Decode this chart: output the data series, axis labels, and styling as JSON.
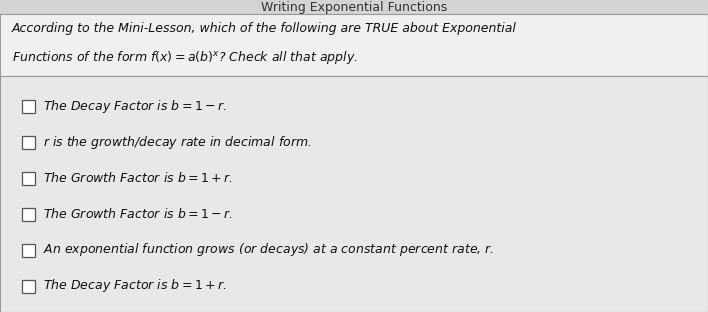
{
  "title": "Writing Exponential Functions",
  "title_color": "#333333",
  "title_fontsize": 9,
  "header_text_line1": "According to the Mini-Lesson, which of the following are TRUE about Exponential",
  "header_text_line2": "Functions of the form $f(x) = a(b)^x$? Check all that apply.",
  "header_bg": "#f0f0f0",
  "outer_bg": "#c0c0c0",
  "body_bg": "#e8e8e8",
  "title_bg": "#d4d4d4",
  "checkbox_color": "#555555",
  "items": [
    "The Decay Factor is $b = 1 - r$.",
    "$r$ is the growth/decay rate in decimal form.",
    "The Growth Factor is $b = 1 + r$.",
    "The Growth Factor is $b = 1 - r$.",
    "An exponential function grows (or decays) at a constant percent rate, $r$.",
    "The Decay Factor is $b = 1 + r$."
  ],
  "item_fontsize": 9,
  "header_fontsize": 9,
  "fig_width": 7.08,
  "fig_height": 3.12,
  "dpi": 100
}
